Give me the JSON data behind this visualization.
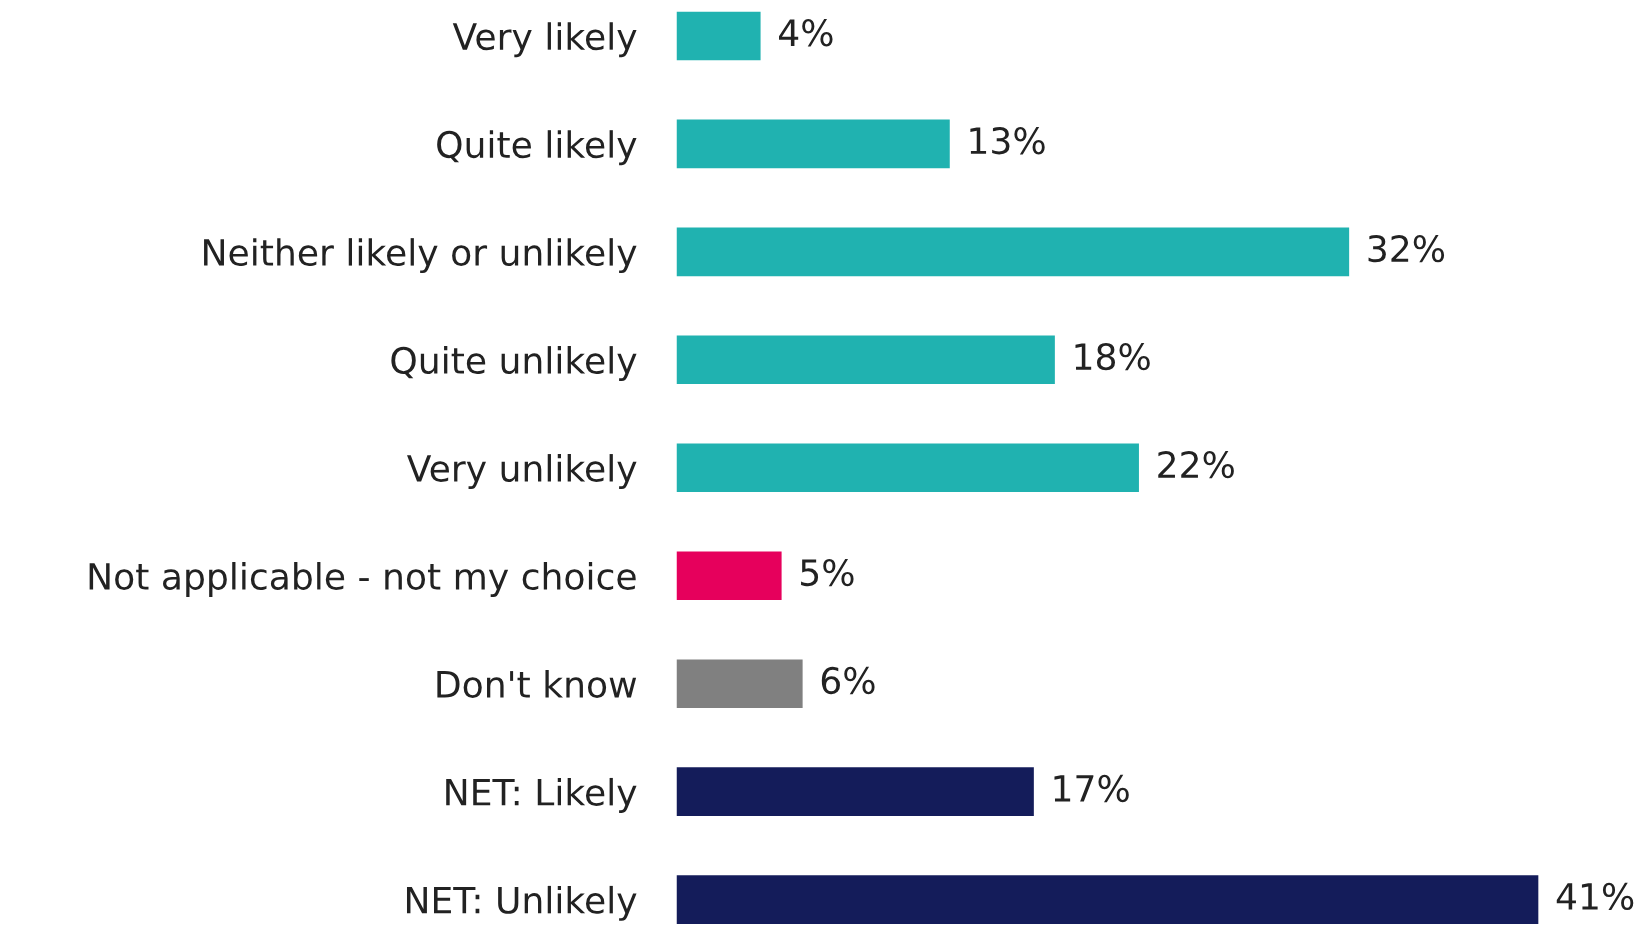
{
  "chart_data": {
    "type": "bar",
    "orientation": "horizontal",
    "categories": [
      "Very likely",
      "Quite likely",
      "Neither likely or unlikely",
      "Quite unlikely",
      "Very unlikely",
      "Not applicable - not my choice",
      "Don't know",
      "NET: Likely",
      "NET: Unlikely"
    ],
    "values": [
      4,
      13,
      32,
      18,
      22,
      5,
      6,
      17,
      41
    ],
    "colors": [
      "#20b2b0",
      "#20b2b0",
      "#20b2b0",
      "#20b2b0",
      "#20b2b0",
      "#e6005c",
      "#808080",
      "#141c5a",
      "#141c5a"
    ],
    "value_labels": [
      "4%",
      "13%",
      "32%",
      "18%",
      "22%",
      "5%",
      "6%",
      "17%",
      "41%"
    ],
    "tick_labels": "y",
    "grid": false,
    "legend": false
  }
}
